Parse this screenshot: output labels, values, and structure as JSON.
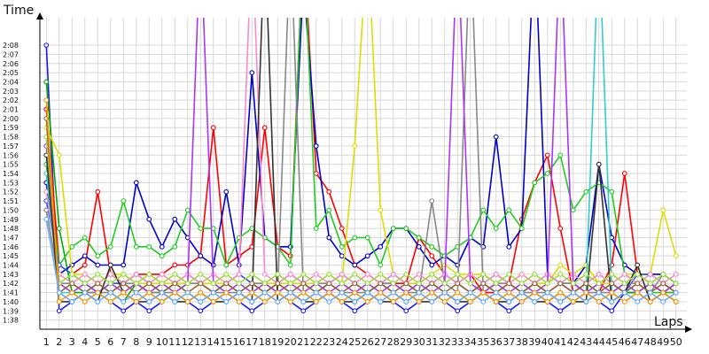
{
  "chart_data": {
    "type": "line",
    "title": "",
    "ylabel": "Time",
    "xlabel": "Laps",
    "x": [
      1,
      2,
      3,
      4,
      5,
      6,
      7,
      8,
      9,
      10,
      11,
      12,
      13,
      14,
      15,
      16,
      17,
      18,
      19,
      20,
      21,
      22,
      23,
      24,
      25,
      26,
      27,
      28,
      29,
      30,
      31,
      32,
      33,
      34,
      35,
      36,
      37,
      38,
      39,
      40,
      41,
      42,
      43,
      44,
      45,
      46,
      47,
      48,
      49,
      50
    ],
    "y_ticks": [
      "1:38",
      "1:39",
      "1:40",
      "1:41",
      "1:42",
      "1:43",
      "1:44",
      "1:45",
      "1:46",
      "1:47",
      "1:48",
      "1:49",
      "1:50",
      "1:51",
      "1:52",
      "1:53",
      "1:54",
      "1:55",
      "1:56",
      "1:57",
      "1:58",
      "1:59",
      "2:00",
      "2:01",
      "2:02",
      "2:03",
      "2:04",
      "2:05",
      "2:06",
      "2:07",
      "2:08"
    ],
    "y_tick_seconds": [
      98,
      99,
      100,
      101,
      102,
      103,
      104,
      105,
      106,
      107,
      108,
      109,
      110,
      111,
      112,
      113,
      114,
      115,
      116,
      117,
      118,
      119,
      120,
      121,
      122,
      123,
      124,
      125,
      126,
      127,
      128
    ],
    "ylim": [
      "1:37",
      "2:11"
    ],
    "grid": true,
    "markers": "circle",
    "series": [
      {
        "color": "#1a1aff",
        "values": [
          128,
          99,
          100,
          101,
          101,
          100,
          99,
          100,
          99,
          100,
          101,
          100,
          99,
          100,
          101,
          100,
          99,
          100,
          101,
          100,
          99,
          100,
          101,
          100,
          99,
          100,
          101,
          100,
          99,
          100,
          101,
          100,
          99,
          100,
          101,
          100,
          99,
          100,
          101,
          100,
          99,
          100,
          101,
          100,
          99,
          101,
          101,
          100,
          101,
          102
        ]
      },
      {
        "color": "#00aa00",
        "values": [
          124,
          108,
          101,
          101,
          102,
          101,
          100,
          102,
          101,
          101,
          102,
          101,
          100,
          101,
          102,
          101,
          100,
          101,
          102,
          101,
          100,
          101,
          102,
          101,
          100,
          101,
          102,
          101,
          100,
          101,
          102,
          101,
          100,
          101,
          102,
          101,
          100,
          101,
          102,
          101,
          100,
          101,
          102,
          101,
          100,
          101,
          101,
          102,
          101,
          102
        ]
      },
      {
        "color": "#ff0000",
        "values": [
          121,
          104,
          103,
          104,
          112,
          103,
          102,
          103,
          103,
          103,
          104,
          104,
          105,
          119,
          104,
          105,
          106,
          119,
          106,
          105,
          140,
          114,
          112,
          108,
          104,
          103,
          102,
          102,
          102,
          107,
          105,
          103,
          102,
          103,
          101,
          101,
          102,
          109,
          113,
          116,
          108,
          101,
          100,
          101,
          104,
          114,
          103,
          102,
          101,
          101
        ]
      },
      {
        "color": "#0000cc",
        "values": [
          113,
          103,
          104,
          105,
          104,
          104,
          104,
          113,
          109,
          106,
          109,
          107,
          105,
          104,
          112,
          104,
          125,
          107,
          106,
          106,
          135,
          117,
          107,
          105,
          104,
          105,
          106,
          108,
          108,
          106,
          104,
          105,
          104,
          107,
          106,
          118,
          106,
          108,
          140,
          103,
          102,
          102,
          104,
          115,
          107,
          104,
          103,
          103,
          103,
          102
        ]
      },
      {
        "color": "#22cc22",
        "values": [
          115,
          104,
          106,
          107,
          105,
          106,
          111,
          106,
          106,
          105,
          106,
          110,
          108,
          108,
          104,
          107,
          108,
          107,
          106,
          104,
          140,
          108,
          110,
          106,
          107,
          107,
          104,
          108,
          108,
          107,
          106,
          105,
          106,
          107,
          110,
          108,
          110,
          108,
          113,
          114,
          116,
          110,
          112,
          113,
          112,
          103,
          102,
          101,
          101,
          101
        ]
      },
      {
        "color": "#dddd00",
        "values": [
          119,
          116,
          103,
          103,
          102,
          103,
          103,
          102,
          102,
          102,
          102,
          102,
          102,
          102,
          102,
          103,
          102,
          102,
          102,
          102,
          102,
          102,
          103,
          102,
          117,
          140,
          110,
          103,
          102,
          102,
          103,
          104,
          103,
          103,
          103,
          102,
          102,
          103,
          102,
          102,
          104,
          103,
          104,
          102,
          102,
          103,
          103,
          103,
          110,
          105
        ]
      },
      {
        "color": "#2255ff",
        "values": [
          111,
          104,
          103,
          102,
          101,
          102,
          102,
          103,
          102,
          101,
          102,
          103,
          102,
          101,
          102,
          103,
          102,
          101,
          102,
          103,
          102,
          101,
          102,
          103,
          102,
          101,
          102,
          103,
          102,
          101,
          102,
          103,
          102,
          101,
          102,
          103,
          102,
          101,
          102,
          103,
          102,
          101,
          102,
          103,
          102,
          101,
          103,
          103,
          102,
          101
        ]
      },
      {
        "color": "#888888",
        "values": [
          110,
          102,
          102,
          101,
          101,
          101,
          102,
          102,
          101,
          101,
          101,
          102,
          102,
          101,
          101,
          101,
          102,
          102,
          101,
          140,
          101,
          102,
          102,
          101,
          101,
          101,
          102,
          102,
          101,
          101,
          111,
          102,
          101,
          140,
          101,
          102,
          102,
          101,
          101,
          101,
          102,
          102,
          101,
          101,
          101,
          102,
          102,
          101,
          103,
          102
        ]
      },
      {
        "color": "#ff88cc",
        "values": [
          112,
          103,
          102,
          103,
          102,
          103,
          102,
          103,
          102,
          103,
          102,
          103,
          102,
          103,
          102,
          103,
          140,
          103,
          102,
          103,
          102,
          103,
          102,
          103,
          102,
          103,
          102,
          103,
          102,
          103,
          102,
          103,
          102,
          103,
          102,
          103,
          102,
          103,
          102,
          103,
          102,
          103,
          102,
          103,
          102,
          103,
          102,
          103,
          102,
          103
        ]
      },
      {
        "color": "#aa33ff",
        "values": [
          117,
          102,
          101,
          102,
          101,
          102,
          101,
          102,
          101,
          102,
          101,
          102,
          140,
          102,
          101,
          102,
          101,
          102,
          101,
          102,
          101,
          102,
          101,
          102,
          101,
          102,
          101,
          102,
          101,
          102,
          101,
          102,
          140,
          102,
          101,
          102,
          101,
          102,
          101,
          102,
          140,
          102,
          101,
          102,
          101,
          102,
          101,
          102,
          101,
          102
        ]
      },
      {
        "color": "#33cccc",
        "values": [
          114,
          101,
          101,
          100,
          101,
          100,
          101,
          100,
          101,
          100,
          101,
          100,
          101,
          100,
          101,
          100,
          101,
          100,
          101,
          100,
          101,
          100,
          101,
          100,
          101,
          100,
          101,
          100,
          101,
          100,
          101,
          100,
          101,
          100,
          101,
          100,
          101,
          100,
          101,
          100,
          101,
          100,
          101,
          140,
          101,
          100,
          101,
          100,
          101,
          100
        ]
      },
      {
        "color": "#333333",
        "values": [
          116,
          100,
          100,
          101,
          100,
          104,
          101,
          100,
          100,
          101,
          100,
          100,
          101,
          100,
          100,
          101,
          100,
          140,
          100,
          101,
          100,
          100,
          101,
          100,
          100,
          101,
          100,
          100,
          101,
          100,
          100,
          101,
          100,
          100,
          101,
          100,
          100,
          101,
          100,
          100,
          101,
          100,
          100,
          115,
          100,
          101,
          104,
          100,
          101,
          100
        ]
      },
      {
        "color": "#99dd33",
        "values": [
          118,
          102,
          103,
          102,
          103,
          102,
          103,
          102,
          103,
          102,
          103,
          102,
          103,
          102,
          103,
          102,
          103,
          102,
          103,
          102,
          103,
          102,
          103,
          102,
          103,
          102,
          103,
          102,
          103,
          102,
          103,
          102,
          103,
          102,
          103,
          102,
          103,
          102,
          103,
          102,
          103,
          102,
          103,
          102,
          103,
          102,
          103,
          102,
          103,
          102
        ]
      },
      {
        "color": "#996633",
        "values": [
          120,
          101,
          102,
          101,
          102,
          101,
          102,
          101,
          102,
          101,
          102,
          101,
          102,
          101,
          102,
          101,
          102,
          101,
          102,
          101,
          102,
          101,
          102,
          101,
          102,
          101,
          102,
          101,
          102,
          101,
          102,
          101,
          102,
          101,
          102,
          101,
          102,
          101,
          102,
          101,
          102,
          101,
          102,
          101,
          102,
          101,
          102,
          101,
          102,
          101
        ]
      },
      {
        "color": "#ff9900",
        "values": [
          122,
          100,
          101,
          100,
          101,
          100,
          101,
          100,
          101,
          100,
          101,
          100,
          101,
          100,
          101,
          100,
          101,
          100,
          101,
          100,
          101,
          100,
          101,
          100,
          101,
          100,
          101,
          100,
          101,
          100,
          101,
          100,
          101,
          100,
          101,
          100,
          101,
          100,
          101,
          100,
          101,
          100,
          101,
          100,
          101,
          100,
          101,
          100,
          101,
          100
        ]
      },
      {
        "color": "#66aaff",
        "values": [
          109,
          101,
          100,
          101,
          100,
          101,
          100,
          101,
          100,
          101,
          100,
          101,
          100,
          101,
          100,
          101,
          100,
          101,
          100,
          101,
          100,
          101,
          100,
          101,
          100,
          101,
          100,
          101,
          100,
          101,
          100,
          101,
          100,
          101,
          100,
          101,
          100,
          101,
          100,
          101,
          100,
          101,
          100,
          101,
          100,
          101,
          100,
          101,
          100,
          101
        ]
      }
    ]
  }
}
